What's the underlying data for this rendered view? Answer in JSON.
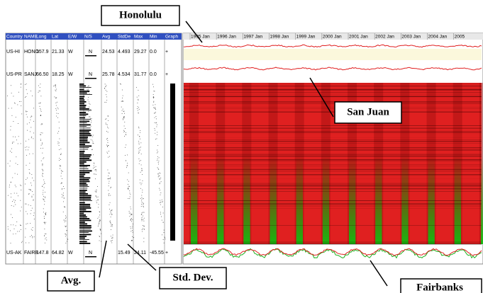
{
  "callouts": {
    "honolulu": "Honolulu",
    "san_juan": "San Juan",
    "avg": "Avg.",
    "std_dev": "Std. Dev.",
    "fairbanks": "Fairbanks"
  },
  "table": {
    "columns": [
      "Country",
      "NAME",
      "Long",
      "Lat",
      "E/W",
      "N/S",
      "Avg",
      "StdDe",
      "Max",
      "Min",
      "Graph"
    ],
    "rows": [
      [
        "US-HI",
        "HONO",
        "157.9",
        "21.33",
        "W",
        "N",
        "24.53",
        "4.493",
        "29.27",
        "0.0",
        "+"
      ],
      [
        "US-PR",
        "SANJ",
        "66.50",
        "18.25",
        "W",
        "N",
        "25.78",
        "4.534",
        "31.77",
        "0.0",
        "+"
      ],
      [
        "US-AK",
        "FAIRB",
        "147.8",
        "64.82",
        "W",
        "N",
        null,
        "15.49",
        "24.11",
        "-45.55",
        "+"
      ]
    ]
  },
  "timeline": {
    "years": [
      "1995 Jan",
      "1996 Jan",
      "1997 Jan",
      "1998 Jan",
      "1999 Jan",
      "2000 Jan",
      "2001 Jan",
      "2002 Jan",
      "2003 Jan",
      "2004 Jan",
      "2005"
    ]
  }
}
